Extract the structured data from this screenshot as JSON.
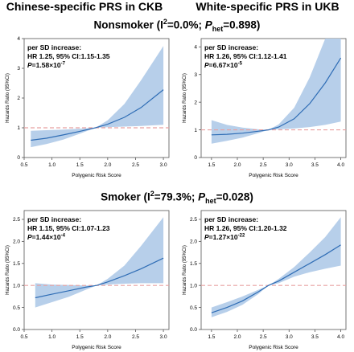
{
  "header": {
    "left_title": "Chinese-specific PRS in CKB",
    "right_title": "White-specific PRS in UKB"
  },
  "sections": [
    {
      "label_prefix": "Nonsmoker (I",
      "i2_sup": "2",
      "i2_value": "=0.0%; ",
      "p_letter": "P",
      "p_sub": "het",
      "p_value": "=0.898)"
    },
    {
      "label_prefix": "Smoker (I",
      "i2_sup": "2",
      "i2_value": "=79.3%; ",
      "p_letter": "P",
      "p_sub": "het",
      "p_value": "=0.028)"
    }
  ],
  "colors": {
    "band": "#b7cfea",
    "line": "#2f6db5",
    "reference": "#e8a0a0"
  },
  "chart_data": [
    {
      "type": "line",
      "panel": "CKB nonsmoker",
      "xlabel": "Polygenic Risk Score",
      "ylabel": "Hazards Ratio (95%CI)",
      "xlim": [
        0.5,
        3.1
      ],
      "ylim": [
        0,
        4
      ],
      "reference_line": 1,
      "xticks": [
        "0.5",
        "1.0",
        "1.5",
        "2.0",
        "2.5",
        "3.0"
      ],
      "yticks": [
        "0",
        "1",
        "2",
        "3",
        "4"
      ],
      "annotation": {
        "line1": "per SD increase:",
        "line2": "HR 1.25, 95% CI:1.15-1.35",
        "line3_p": "P",
        "line3_value": "=1.58×10",
        "line3_exp": "-7"
      },
      "x": [
        0.62,
        0.9,
        1.2,
        1.5,
        1.78,
        2.0,
        2.3,
        2.6,
        3.0
      ],
      "y": [
        0.58,
        0.65,
        0.76,
        0.88,
        1.0,
        1.12,
        1.35,
        1.68,
        2.28
      ],
      "lower": [
        0.35,
        0.45,
        0.6,
        0.8,
        1.0,
        1.02,
        1.04,
        1.06,
        1.1
      ],
      "upper": [
        0.9,
        0.92,
        0.94,
        0.97,
        1.0,
        1.25,
        1.8,
        2.6,
        3.75
      ]
    },
    {
      "type": "line",
      "panel": "UKB nonsmoker",
      "xlabel": "Polygenic Risk Score",
      "ylabel": "Hazards Ratio (95%CI)",
      "xlim": [
        1.3,
        4.1
      ],
      "ylim": [
        0,
        4.3
      ],
      "reference_line": 1,
      "xticks": [
        "1.5",
        "2.0",
        "2.5",
        "3.0",
        "3.5",
        "4.0"
      ],
      "yticks": [
        "0",
        "1",
        "2",
        "3",
        "4"
      ],
      "annotation": {
        "line1": "per SD increase:",
        "line2": "HR 1.26, 95% CI:1.12-1.41",
        "line3_p": "P",
        "line3_value": "=6.67×10",
        "line3_exp": "-5"
      },
      "x": [
        1.5,
        1.8,
        2.1,
        2.4,
        2.6,
        2.8,
        3.1,
        3.4,
        3.7,
        4.0
      ],
      "y": [
        0.82,
        0.84,
        0.88,
        0.95,
        1.0,
        1.1,
        1.4,
        1.95,
        2.7,
        3.6
      ],
      "lower": [
        0.5,
        0.6,
        0.72,
        0.88,
        1.0,
        1.02,
        1.05,
        1.1,
        1.18,
        1.3
      ],
      "upper": [
        1.35,
        1.18,
        1.08,
        1.02,
        1.0,
        1.2,
        1.8,
        2.9,
        4.3,
        4.3
      ]
    },
    {
      "type": "line",
      "panel": "CKB smoker",
      "xlabel": "Polygenic Risk Score",
      "ylabel": "Hazards Ratio (95%CI)",
      "xlim": [
        0.5,
        3.1
      ],
      "ylim": [
        0,
        2.7
      ],
      "reference_line": 1,
      "xticks": [
        "0.5",
        "1.0",
        "1.5",
        "2.0",
        "2.5",
        "3.0"
      ],
      "yticks": [
        "0.0",
        "0.5",
        "1.0",
        "1.5",
        "2.0",
        "2.5"
      ],
      "annotation": {
        "line1": "per SD increase:",
        "line2": "HR 1.15, 95% CI:1.07-1.23",
        "line3_p": "P",
        "line3_value": "=1.44×10",
        "line3_exp": "-4"
      },
      "x": [
        0.7,
        1.0,
        1.3,
        1.6,
        1.8,
        2.0,
        2.3,
        2.6,
        3.0
      ],
      "y": [
        0.72,
        0.8,
        0.88,
        0.96,
        1.0,
        1.08,
        1.22,
        1.38,
        1.62
      ],
      "lower": [
        0.5,
        0.62,
        0.74,
        0.9,
        1.0,
        1.02,
        1.04,
        1.05,
        1.05
      ],
      "upper": [
        1.05,
        1.02,
        1.01,
        1.0,
        1.0,
        1.15,
        1.45,
        1.9,
        2.55
      ]
    },
    {
      "type": "line",
      "panel": "UKB smoker",
      "xlabel": "Polygenic Risk Score",
      "ylabel": "Hazards Ratio (95%CI)",
      "xlim": [
        1.3,
        4.1
      ],
      "ylim": [
        0,
        2.7
      ],
      "reference_line": 1,
      "xticks": [
        "1.5",
        "2.0",
        "2.5",
        "3.0",
        "3.5",
        "4.0"
      ],
      "yticks": [
        "0.0",
        "0.5",
        "1.0",
        "1.5",
        "2.0",
        "2.5"
      ],
      "annotation": {
        "line1": "per SD increase:",
        "line2": "HR 1.26, 95% CI:1.20-1.32",
        "line3_p": "P",
        "line3_value": "=1.27×10",
        "line3_exp": "-22"
      },
      "x": [
        1.5,
        1.8,
        2.1,
        2.4,
        2.6,
        2.8,
        3.1,
        3.4,
        3.7,
        4.0
      ],
      "y": [
        0.38,
        0.5,
        0.65,
        0.85,
        1.0,
        1.1,
        1.3,
        1.5,
        1.7,
        1.92
      ],
      "lower": [
        0.28,
        0.4,
        0.56,
        0.8,
        1.0,
        1.05,
        1.2,
        1.3,
        1.38,
        1.45
      ],
      "upper": [
        0.5,
        0.62,
        0.75,
        0.9,
        1.0,
        1.15,
        1.42,
        1.75,
        2.1,
        2.55
      ]
    }
  ]
}
